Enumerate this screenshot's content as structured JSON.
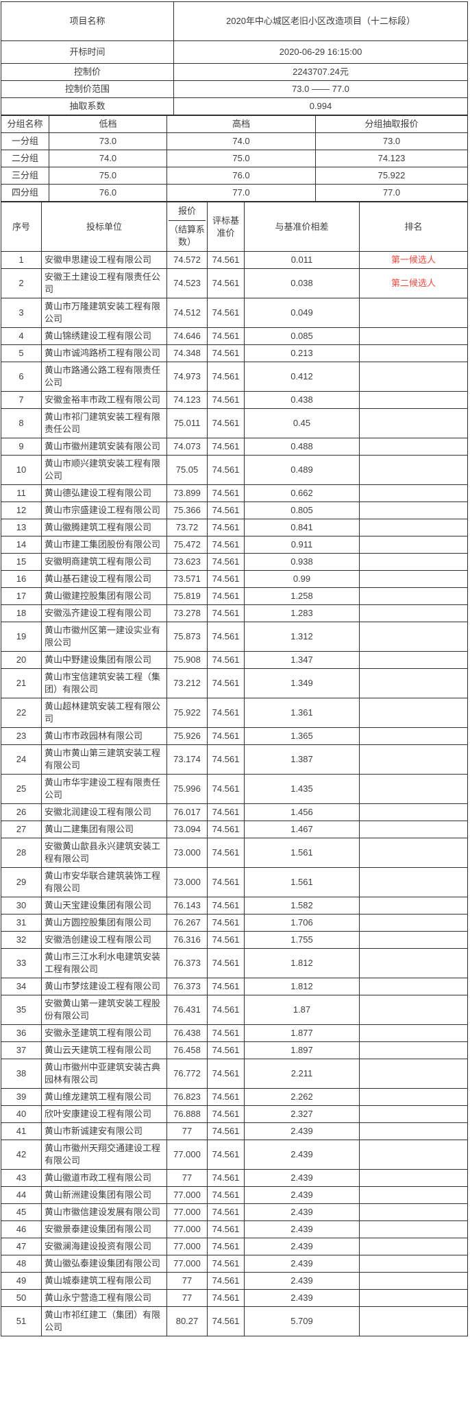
{
  "colors": {
    "rank_red": "#f04a3e",
    "border": "#2e2e2e",
    "text": "#3d3d3d"
  },
  "info": {
    "project_name_label": "项目名称",
    "project_name": "2020年中心城区老旧小区改造项目（十二标段）",
    "open_time_label": "开标时间",
    "open_time": "2020-06-29 16:15:00",
    "control_price_label": "控制价",
    "control_price": "2243707.24元",
    "control_range_label": "控制价范围",
    "control_range": "73.0 —— 77.0",
    "coefficient_label": "抽取系数",
    "coefficient": "0.994"
  },
  "groups": {
    "headers": [
      "分组名称",
      "低档",
      "高档",
      "分组抽取报价"
    ],
    "rows": [
      [
        "一分组",
        "73.0",
        "74.0",
        "73.0"
      ],
      [
        "二分组",
        "74.0",
        "75.0",
        "74.123"
      ],
      [
        "三分组",
        "75.0",
        "76.0",
        "75.922"
      ],
      [
        "四分组",
        "76.0",
        "77.0",
        "77.0"
      ]
    ]
  },
  "bids": {
    "headers": {
      "no": "序号",
      "bidder": "投标单位",
      "price_top": "报价",
      "price_bottom": "（结算系数）",
      "benchmark": "评标基准价",
      "diff": "与基准价相差",
      "rank": "排名"
    },
    "rows": [
      {
        "no": "1",
        "bidder": "安徽申思建设工程有限公司",
        "price": "74.572",
        "benchmark": "74.561",
        "diff": "0.011",
        "rank": "第一候选人",
        "rank_red": true
      },
      {
        "no": "2",
        "bidder": "安徽王土建设工程有限责任公司",
        "price": "74.523",
        "benchmark": "74.561",
        "diff": "0.038",
        "rank": "第二候选人",
        "rank_red": true
      },
      {
        "no": "3",
        "bidder": "黄山市万隆建筑安装工程有限公司",
        "price": "74.512",
        "benchmark": "74.561",
        "diff": "0.049",
        "rank": "",
        "rank_red": false
      },
      {
        "no": "4",
        "bidder": "黄山锦绣建设工程有限公司",
        "price": "74.646",
        "benchmark": "74.561",
        "diff": "0.085",
        "rank": "",
        "rank_red": false
      },
      {
        "no": "5",
        "bidder": "黄山市诚鸿路桥工程有限公司",
        "price": "74.348",
        "benchmark": "74.561",
        "diff": "0.213",
        "rank": "",
        "rank_red": false
      },
      {
        "no": "6",
        "bidder": "黄山市路通公路工程有限责任公司",
        "price": "74.973",
        "benchmark": "74.561",
        "diff": "0.412",
        "rank": "",
        "rank_red": false
      },
      {
        "no": "7",
        "bidder": "安徽金裕丰市政工程有限公司",
        "price": "74.123",
        "benchmark": "74.561",
        "diff": "0.438",
        "rank": "",
        "rank_red": false
      },
      {
        "no": "8",
        "bidder": "黄山市祁门建筑安装工程有限责任公司",
        "price": "75.011",
        "benchmark": "74.561",
        "diff": "0.45",
        "rank": "",
        "rank_red": false
      },
      {
        "no": "9",
        "bidder": "黄山市徽州建筑安装有限公司",
        "price": "74.073",
        "benchmark": "74.561",
        "diff": "0.488",
        "rank": "",
        "rank_red": false
      },
      {
        "no": "10",
        "bidder": "黄山市顺兴建筑安装工程有限公司",
        "price": "75.05",
        "benchmark": "74.561",
        "diff": "0.489",
        "rank": "",
        "rank_red": false
      },
      {
        "no": "11",
        "bidder": "黄山德弘建设工程有限公司",
        "price": "73.899",
        "benchmark": "74.561",
        "diff": "0.662",
        "rank": "",
        "rank_red": false
      },
      {
        "no": "12",
        "bidder": "黄山市宗盛建设工程有限公司",
        "price": "75.366",
        "benchmark": "74.561",
        "diff": "0.805",
        "rank": "",
        "rank_red": false
      },
      {
        "no": "13",
        "bidder": "黄山徽腾建筑工程有限公司",
        "price": "73.72",
        "benchmark": "74.561",
        "diff": "0.841",
        "rank": "",
        "rank_red": false
      },
      {
        "no": "14",
        "bidder": "黄山市建工集团股份有限公司",
        "price": "75.472",
        "benchmark": "74.561",
        "diff": "0.911",
        "rank": "",
        "rank_red": false
      },
      {
        "no": "15",
        "bidder": "安徽明商建筑工程有限公司",
        "price": "73.623",
        "benchmark": "74.561",
        "diff": "0.938",
        "rank": "",
        "rank_red": false
      },
      {
        "no": "16",
        "bidder": "黄山基石建设工程有限公司",
        "price": "73.571",
        "benchmark": "74.561",
        "diff": "0.99",
        "rank": "",
        "rank_red": false
      },
      {
        "no": "17",
        "bidder": "黄山徽建控股集团有限公司",
        "price": "75.819",
        "benchmark": "74.561",
        "diff": "1.258",
        "rank": "",
        "rank_red": false
      },
      {
        "no": "18",
        "bidder": "安徽泓齐建设工程有限公司",
        "price": "73.278",
        "benchmark": "74.561",
        "diff": "1.283",
        "rank": "",
        "rank_red": false
      },
      {
        "no": "19",
        "bidder": "黄山市徽州区第一建设实业有限公司",
        "price": "75.873",
        "benchmark": "74.561",
        "diff": "1.312",
        "rank": "",
        "rank_red": false
      },
      {
        "no": "20",
        "bidder": "黄山中野建设集团有限公司",
        "price": "75.908",
        "benchmark": "74.561",
        "diff": "1.347",
        "rank": "",
        "rank_red": false
      },
      {
        "no": "21",
        "bidder": "黄山市宝信建筑安装工程（集团）有限公司",
        "price": "73.212",
        "benchmark": "74.561",
        "diff": "1.349",
        "rank": "",
        "rank_red": false
      },
      {
        "no": "22",
        "bidder": "黄山超林建筑安装工程有限公司",
        "price": "75.922",
        "benchmark": "74.561",
        "diff": "1.361",
        "rank": "",
        "rank_red": false
      },
      {
        "no": "23",
        "bidder": "黄山市市政园林有限公司",
        "price": "75.926",
        "benchmark": "74.561",
        "diff": "1.365",
        "rank": "",
        "rank_red": false
      },
      {
        "no": "24",
        "bidder": "黄山市黄山第三建筑安装工程有限公司",
        "price": "73.174",
        "benchmark": "74.561",
        "diff": "1.387",
        "rank": "",
        "rank_red": false
      },
      {
        "no": "25",
        "bidder": "黄山市华宇建设工程有限责任公司",
        "price": "75.996",
        "benchmark": "74.561",
        "diff": "1.435",
        "rank": "",
        "rank_red": false
      },
      {
        "no": "26",
        "bidder": "安徽北润建设工程有限公司",
        "price": "76.017",
        "benchmark": "74.561",
        "diff": "1.456",
        "rank": "",
        "rank_red": false
      },
      {
        "no": "27",
        "bidder": "黄山二建集团有限公司",
        "price": "73.094",
        "benchmark": "74.561",
        "diff": "1.467",
        "rank": "",
        "rank_red": false
      },
      {
        "no": "28",
        "bidder": "安徽黄山歙县永兴建筑安装工程有限公司",
        "price": "73.000",
        "benchmark": "74.561",
        "diff": "1.561",
        "rank": "",
        "rank_red": false
      },
      {
        "no": "29",
        "bidder": "黄山市安华联合建筑装饰工程有限公司",
        "price": "73.000",
        "benchmark": "74.561",
        "diff": "1.561",
        "rank": "",
        "rank_red": false
      },
      {
        "no": "30",
        "bidder": "黄山天宝建设集团有限公司",
        "price": "76.143",
        "benchmark": "74.561",
        "diff": "1.582",
        "rank": "",
        "rank_red": false
      },
      {
        "no": "31",
        "bidder": "黄山方圆控股集团有限公司",
        "price": "76.267",
        "benchmark": "74.561",
        "diff": "1.706",
        "rank": "",
        "rank_red": false
      },
      {
        "no": "32",
        "bidder": "安徽浩创建设工程有限公司",
        "price": "76.316",
        "benchmark": "74.561",
        "diff": "1.755",
        "rank": "",
        "rank_red": false
      },
      {
        "no": "33",
        "bidder": "黄山市三江水利水电建筑安装工程有限公司",
        "price": "76.373",
        "benchmark": "74.561",
        "diff": "1.812",
        "rank": "",
        "rank_red": false
      },
      {
        "no": "34",
        "bidder": "黄山市梦炫建设工程有限公司",
        "price": "76.373",
        "benchmark": "74.561",
        "diff": "1.812",
        "rank": "",
        "rank_red": false
      },
      {
        "no": "35",
        "bidder": "安徽黄山第一建筑安装工程股份有限公司",
        "price": "76.431",
        "benchmark": "74.561",
        "diff": "1.87",
        "rank": "",
        "rank_red": false
      },
      {
        "no": "36",
        "bidder": "安徽永圣建筑工程有限公司",
        "price": "76.438",
        "benchmark": "74.561",
        "diff": "1.877",
        "rank": "",
        "rank_red": false
      },
      {
        "no": "37",
        "bidder": "黄山云天建筑工程有限公司",
        "price": "76.458",
        "benchmark": "74.561",
        "diff": "1.897",
        "rank": "",
        "rank_red": false
      },
      {
        "no": "38",
        "bidder": "黄山市徽州中亚建筑安装古典园林有限公司",
        "price": "76.772",
        "benchmark": "74.561",
        "diff": "2.211",
        "rank": "",
        "rank_red": false
      },
      {
        "no": "39",
        "bidder": "黄山维龙建筑工程有限公司",
        "price": "76.823",
        "benchmark": "74.561",
        "diff": "2.262",
        "rank": "",
        "rank_red": false
      },
      {
        "no": "40",
        "bidder": "欣叶安康建设工程有限公司",
        "price": "76.888",
        "benchmark": "74.561",
        "diff": "2.327",
        "rank": "",
        "rank_red": false
      },
      {
        "no": "41",
        "bidder": "黄山市新诚建安有限公司",
        "price": "77",
        "benchmark": "74.561",
        "diff": "2.439",
        "rank": "",
        "rank_red": false
      },
      {
        "no": "42",
        "bidder": "黄山市徽州天翔交通建设工程有限公司",
        "price": "77.000",
        "benchmark": "74.561",
        "diff": "2.439",
        "rank": "",
        "rank_red": false
      },
      {
        "no": "43",
        "bidder": "黄山徽道市政工程有限公司",
        "price": "77",
        "benchmark": "74.561",
        "diff": "2.439",
        "rank": "",
        "rank_red": false
      },
      {
        "no": "44",
        "bidder": "黄山新洲建设集团有限公司",
        "price": "77.000",
        "benchmark": "74.561",
        "diff": "2.439",
        "rank": "",
        "rank_red": false
      },
      {
        "no": "45",
        "bidder": "黄山市徽信建设发展有限公司",
        "price": "77.000",
        "benchmark": "74.561",
        "diff": "2.439",
        "rank": "",
        "rank_red": false
      },
      {
        "no": "46",
        "bidder": "安徽景泰建设集团有限公司",
        "price": "77.000",
        "benchmark": "74.561",
        "diff": "2.439",
        "rank": "",
        "rank_red": false
      },
      {
        "no": "47",
        "bidder": "安徽澜海建设投资有限公司",
        "price": "77.000",
        "benchmark": "74.561",
        "diff": "2.439",
        "rank": "",
        "rank_red": false
      },
      {
        "no": "48",
        "bidder": "黄山徽弘泰建设集团有限公司",
        "price": "77.000",
        "benchmark": "74.561",
        "diff": "2.439",
        "rank": "",
        "rank_red": false
      },
      {
        "no": "49",
        "bidder": "黄山城泰建筑工程有限公司",
        "price": "77",
        "benchmark": "74.561",
        "diff": "2.439",
        "rank": "",
        "rank_red": false
      },
      {
        "no": "50",
        "bidder": "黄山永宁营造工程有限公司",
        "price": "77",
        "benchmark": "74.561",
        "diff": "2.439",
        "rank": "",
        "rank_red": false
      },
      {
        "no": "51",
        "bidder": "黄山市祁红建工（集团）有限公司",
        "price": "80.27",
        "benchmark": "74.561",
        "diff": "5.709",
        "rank": "",
        "rank_red": false
      }
    ]
  }
}
